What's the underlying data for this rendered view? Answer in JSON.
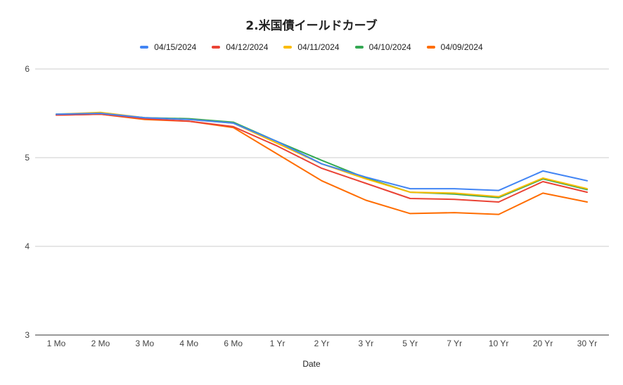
{
  "chart_data": {
    "type": "line",
    "title": "2.米国債イールドカーブ",
    "xlabel": "Date",
    "ylabel": "",
    "ylim": [
      3,
      6
    ],
    "yticks": [
      3,
      4,
      5,
      6
    ],
    "grid": true,
    "legend_position": "top",
    "categories": [
      "1 Mo",
      "2 Mo",
      "3 Mo",
      "4 Mo",
      "6 Mo",
      "1 Yr",
      "2 Yr",
      "3 Yr",
      "5 Yr",
      "7 Yr",
      "10 Yr",
      "20 Yr",
      "30 Yr"
    ],
    "series": [
      {
        "name": "04/15/2024",
        "color": "#4285F4",
        "values": [
          5.49,
          5.5,
          5.45,
          5.43,
          5.39,
          5.18,
          4.93,
          4.78,
          4.65,
          4.65,
          4.63,
          4.85,
          4.74
        ]
      },
      {
        "name": "04/12/2024",
        "color": "#EA4335",
        "values": [
          5.48,
          5.49,
          5.44,
          5.41,
          5.35,
          5.13,
          4.88,
          4.71,
          4.54,
          4.53,
          4.5,
          4.73,
          4.61
        ]
      },
      {
        "name": "04/11/2024",
        "color": "#FBBC04",
        "values": [
          5.49,
          5.51,
          5.45,
          5.43,
          5.39,
          5.16,
          4.93,
          4.76,
          4.61,
          4.6,
          4.56,
          4.77,
          4.65
        ]
      },
      {
        "name": "04/10/2024",
        "color": "#34A853",
        "values": [
          5.49,
          5.5,
          5.45,
          5.44,
          5.4,
          5.18,
          4.97,
          4.77,
          4.61,
          4.59,
          4.55,
          4.76,
          4.64
        ]
      },
      {
        "name": "04/09/2024",
        "color": "#FF6D01",
        "values": [
          5.48,
          5.49,
          5.43,
          5.41,
          5.34,
          5.04,
          4.74,
          4.52,
          4.37,
          4.38,
          4.36,
          4.6,
          4.5
        ]
      }
    ]
  }
}
